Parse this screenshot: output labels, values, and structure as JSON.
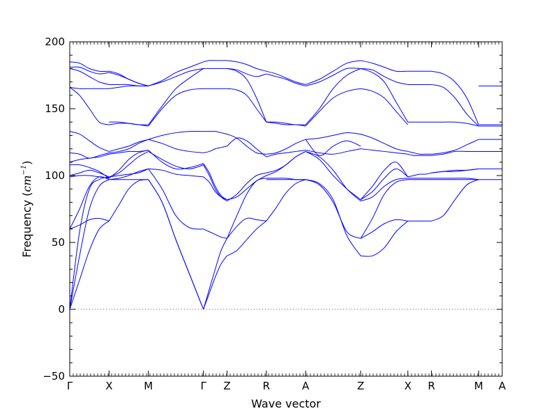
{
  "chart_data": {
    "type": "line",
    "title": "",
    "xlabel": "Wave vector",
    "ylabel": "Frequency",
    "ylabel_unit": "cm",
    "ylabel_unit_exp": "−1",
    "ylim": [
      -50,
      200
    ],
    "yticks": [
      -50,
      0,
      50,
      100,
      150,
      200
    ],
    "grid": false,
    "legend": "none",
    "line_color": "#0000ff",
    "zero_line_color": "#555555",
    "xlim": [
      0,
      11
    ],
    "kpoints": [
      {
        "label": "Γ",
        "x": 0
      },
      {
        "label": "X",
        "x": 1
      },
      {
        "label": "M",
        "x": 2
      },
      {
        "label": "Γ",
        "x": 3.4
      },
      {
        "label": "Z",
        "x": 4
      },
      {
        "label": "R",
        "x": 5
      },
      {
        "label": "A",
        "x": 6
      },
      {
        "label": "Z",
        "x": 7.4
      },
      {
        "label": "X",
        "x": 8.6
      },
      {
        "label": "R",
        "x": 9.2
      },
      {
        "label": "M",
        "x": 10.4
      },
      {
        "label": "A",
        "x": 11
      }
    ],
    "segments": [
      {
        "from": "Γ",
        "to": "X",
        "x": [
          0,
          0.25,
          0.5,
          0.75,
          1
        ],
        "bands": [
          [
            0,
            22,
            44,
            60,
            66
          ],
          [
            0,
            40,
            75,
            92,
            97
          ],
          [
            0,
            58,
            90,
            97,
            99
          ],
          [
            60,
            63,
            67,
            68,
            66
          ],
          [
            60,
            75,
            92,
            99,
            97
          ],
          [
            99,
            100,
            100,
            99,
            98
          ],
          [
            100,
            102,
            104,
            102,
            99
          ],
          [
            108,
            108,
            106,
            103,
            98
          ],
          [
            110,
            112,
            113,
            114,
            116
          ],
          [
            117,
            116,
            113,
            115,
            117
          ],
          [
            133,
            131,
            126,
            121,
            118
          ],
          [
            166,
            160,
            150,
            140,
            138
          ],
          [
            166,
            165,
            165,
            165,
            165
          ],
          [
            180,
            178,
            174,
            170,
            168
          ],
          [
            181,
            181,
            178,
            176,
            177
          ],
          [
            185,
            184,
            180,
            178,
            178
          ]
        ]
      },
      {
        "from": "X",
        "to": "M",
        "x": [
          1,
          1.25,
          1.5,
          1.75,
          2
        ],
        "bands": [
          [
            66,
            78,
            90,
            96,
            97
          ],
          [
            97,
            97,
            97,
            97,
            97
          ],
          [
            99,
            100,
            101,
            102,
            105
          ],
          [
            97,
            98,
            100,
            103,
            105
          ],
          [
            99,
            102,
            108,
            114,
            118
          ],
          [
            98,
            104,
            112,
            117,
            119
          ],
          [
            116,
            117,
            118,
            118,
            119
          ],
          [
            117,
            118,
            120,
            124,
            127
          ],
          [
            118,
            120,
            122,
            125,
            127
          ],
          [
            138,
            139,
            139,
            138,
            137
          ],
          [
            140,
            140,
            139,
            138,
            138
          ],
          [
            165,
            166,
            167,
            167,
            167
          ],
          [
            168,
            168,
            168,
            167,
            167
          ],
          [
            177,
            175,
            172,
            169,
            167
          ],
          [
            178,
            176,
            172,
            169,
            167
          ]
        ]
      },
      {
        "from": "M",
        "to": "Γ",
        "x": [
          2,
          2.35,
          2.7,
          3.05,
          3.4
        ],
        "bands": [
          [
            97,
            80,
            52,
            26,
            0
          ],
          [
            97,
            80,
            52,
            26,
            0
          ],
          [
            105,
            90,
            70,
            61,
            60
          ],
          [
            105,
            104,
            101,
            100,
            99
          ],
          [
            118,
            112,
            107,
            105,
            108
          ],
          [
            119,
            110,
            105,
            106,
            109
          ],
          [
            127,
            124,
            120,
            118,
            117
          ],
          [
            127,
            130,
            132,
            133,
            133
          ],
          [
            137,
            150,
            160,
            164,
            165
          ],
          [
            138,
            152,
            165,
            173,
            180
          ],
          [
            167,
            171,
            177,
            181,
            185
          ],
          [
            167,
            170,
            174,
            178,
            180
          ]
        ]
      },
      {
        "from": "Γ",
        "to": "Z",
        "x": [
          3.4,
          3.55,
          3.7,
          3.85,
          4
        ],
        "bands": [
          [
            0,
            12,
            24,
            34,
            40
          ],
          [
            0,
            15,
            30,
            44,
            53
          ],
          [
            60,
            58,
            56,
            54,
            53
          ],
          [
            99,
            95,
            88,
            84,
            82
          ],
          [
            108,
            100,
            90,
            84,
            81
          ],
          [
            109,
            102,
            92,
            85,
            82
          ],
          [
            117,
            118,
            120,
            121,
            122
          ],
          [
            133,
            133,
            133,
            132,
            131
          ],
          [
            165,
            165,
            165,
            165,
            165
          ],
          [
            180,
            180,
            180,
            180,
            180
          ],
          [
            185,
            186,
            186,
            186,
            186
          ]
        ]
      },
      {
        "from": "Z",
        "to": "R",
        "x": [
          4,
          4.25,
          4.5,
          4.75,
          5
        ],
        "bands": [
          [
            40,
            44,
            52,
            60,
            66
          ],
          [
            53,
            62,
            68,
            67,
            66
          ],
          [
            53,
            70,
            86,
            96,
            98
          ],
          [
            82,
            84,
            90,
            96,
            100
          ],
          [
            81,
            86,
            94,
            100,
            102
          ],
          [
            122,
            128,
            126,
            120,
            114
          ],
          [
            131,
            128,
            122,
            117,
            116
          ],
          [
            165,
            164,
            160,
            150,
            140
          ],
          [
            180,
            178,
            172,
            158,
            140
          ],
          [
            180,
            179,
            176,
            174,
            176
          ],
          [
            186,
            185,
            183,
            180,
            178
          ]
        ]
      },
      {
        "from": "R",
        "to": "A",
        "x": [
          5,
          5.25,
          5.5,
          5.75,
          6
        ],
        "bands": [
          [
            66,
            76,
            87,
            94,
            97
          ],
          [
            97,
            97,
            97,
            97,
            97
          ],
          [
            98,
            98,
            98,
            97,
            97
          ],
          [
            100,
            103,
            108,
            114,
            118
          ],
          [
            102,
            104,
            108,
            114,
            118
          ],
          [
            114,
            116,
            117,
            118,
            119
          ],
          [
            116,
            117,
            120,
            124,
            127
          ],
          [
            140,
            139,
            138,
            138,
            137
          ],
          [
            140,
            140,
            139,
            138,
            138
          ],
          [
            176,
            174,
            172,
            169,
            167
          ],
          [
            178,
            176,
            173,
            170,
            168
          ]
        ]
      },
      {
        "from": "A",
        "to": "Z",
        "x": [
          6,
          6.35,
          6.7,
          7.05,
          7.4
        ],
        "bands": [
          [
            97,
            94,
            82,
            55,
            40
          ],
          [
            97,
            93,
            80,
            58,
            53
          ],
          [
            118,
            112,
            100,
            90,
            82
          ],
          [
            118,
            114,
            104,
            90,
            81
          ],
          [
            119,
            117,
            116,
            118,
            120
          ],
          [
            127,
            115,
            122,
            126,
            122
          ],
          [
            127,
            128,
            130,
            132,
            131
          ],
          [
            137,
            148,
            158,
            163,
            165
          ],
          [
            138,
            150,
            165,
            175,
            180
          ],
          [
            167,
            170,
            175,
            180,
            180
          ],
          [
            168,
            172,
            178,
            184,
            186
          ]
        ]
      },
      {
        "from": "Z",
        "to": "X",
        "x": [
          7.4,
          7.7,
          8.0,
          8.3,
          8.6
        ],
        "bands": [
          [
            40,
            40,
            46,
            58,
            66
          ],
          [
            53,
            58,
            64,
            67,
            66
          ],
          [
            53,
            68,
            86,
            95,
            97
          ],
          [
            81,
            84,
            92,
            97,
            98
          ],
          [
            82,
            88,
            98,
            105,
            99
          ],
          [
            82,
            92,
            104,
            110,
            99
          ],
          [
            120,
            119,
            118,
            117,
            116
          ],
          [
            131,
            128,
            124,
            120,
            118
          ],
          [
            165,
            163,
            158,
            148,
            138
          ],
          [
            180,
            177,
            170,
            155,
            140
          ],
          [
            180,
            179,
            174,
            170,
            168
          ],
          [
            186,
            184,
            181,
            178,
            178
          ]
        ]
      },
      {
        "from": "X",
        "to": "R",
        "x": [
          8.6,
          8.75,
          8.9,
          9.05,
          9.2
        ],
        "bands": [
          [
            66,
            66,
            66,
            66,
            66
          ],
          [
            97,
            97,
            97,
            97,
            97
          ],
          [
            98,
            98,
            98,
            98,
            98
          ],
          [
            99,
            100,
            101,
            101,
            102
          ],
          [
            116,
            115,
            115,
            115,
            115
          ],
          [
            118,
            117,
            116,
            116,
            116
          ],
          [
            140,
            140,
            140,
            140,
            140
          ],
          [
            168,
            168,
            168,
            168,
            168
          ],
          [
            178,
            178,
            178,
            178,
            178
          ]
        ]
      },
      {
        "from": "R",
        "to": "M",
        "x": [
          9.2,
          9.5,
          9.8,
          10.1,
          10.4
        ],
        "bands": [
          [
            66,
            70,
            82,
            93,
            97
          ],
          [
            97,
            97,
            97,
            97,
            97
          ],
          [
            98,
            98,
            98,
            98,
            97
          ],
          [
            102,
            103,
            103,
            104,
            105
          ],
          [
            102,
            103,
            104,
            104,
            105
          ],
          [
            115,
            116,
            118,
            118,
            118
          ],
          [
            116,
            117,
            119,
            123,
            127
          ],
          [
            140,
            140,
            140,
            139,
            137
          ],
          [
            168,
            166,
            158,
            146,
            137
          ],
          [
            178,
            176,
            170,
            158,
            138
          ]
        ]
      },
      {
        "from": "M",
        "to": "A",
        "x": [
          10.4,
          10.55,
          10.7,
          10.85,
          11
        ],
        "bands": [
          [
            97,
            97,
            97,
            97,
            97
          ],
          [
            105,
            105,
            105,
            105,
            105
          ],
          [
            118,
            118,
            118,
            118,
            118
          ],
          [
            127,
            127,
            127,
            127,
            127
          ],
          [
            137,
            137,
            137,
            137,
            137
          ],
          [
            138,
            138,
            138,
            138,
            138
          ],
          [
            167,
            167,
            167,
            167,
            167
          ]
        ]
      }
    ]
  }
}
